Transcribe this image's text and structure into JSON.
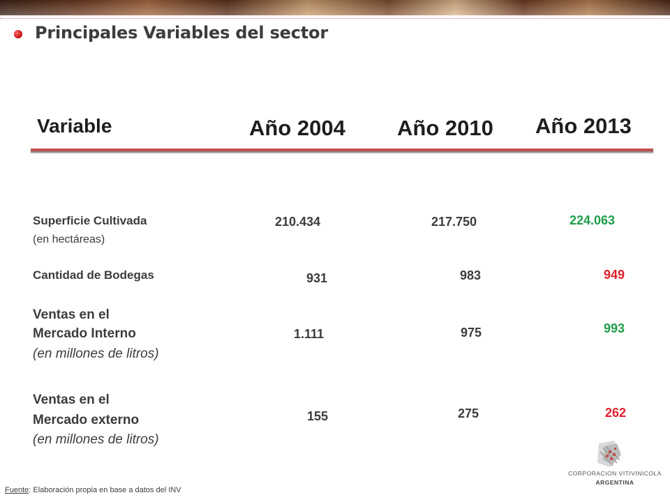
{
  "slide": {
    "title": "Principales Variables del sector"
  },
  "headers": {
    "variable": "Variable",
    "y2004": "Año 2004",
    "y2010": "Año 2010",
    "y2013": "Año 2013"
  },
  "rows": [
    {
      "label": "Superficie Cultivada",
      "unit": "(en hectáreas)",
      "v2004": "210.434",
      "v2010": "217.750",
      "v2013": "224.063",
      "v2013_color": "#1f9e4a"
    },
    {
      "label": "Cantidad de Bodegas",
      "v2004": "931",
      "v2010": "983",
      "v2013": "949",
      "v2013_color": "#e0202a"
    },
    {
      "label_line1": "Ventas en el",
      "label_line2": "Mercado Interno",
      "unit": "(en millones de litros)",
      "v2004": "1.111",
      "v2010": "975",
      "v2013": "993",
      "v2013_color": "#1f9e4a"
    },
    {
      "label_line1": "Ventas en el",
      "label_line2": "Mercado externo",
      "unit": "(en millones de litros)",
      "v2004": "155",
      "v2010": "275",
      "v2013": "262",
      "v2013_color": "#e0202a"
    }
  ],
  "footer": {
    "source_label": "Fuente",
    "source_text": ": Elaboración propia en base a datos del INV"
  },
  "logo": {
    "line1": "CORPORACION VITIVINICOLA",
    "line2": "ARGENTINA",
    "accent_color": "#c0504d"
  },
  "colors": {
    "accent": "#c0504d",
    "positive": "#1f9e4a",
    "negative": "#e0202a",
    "text": "#3c3c3c"
  }
}
